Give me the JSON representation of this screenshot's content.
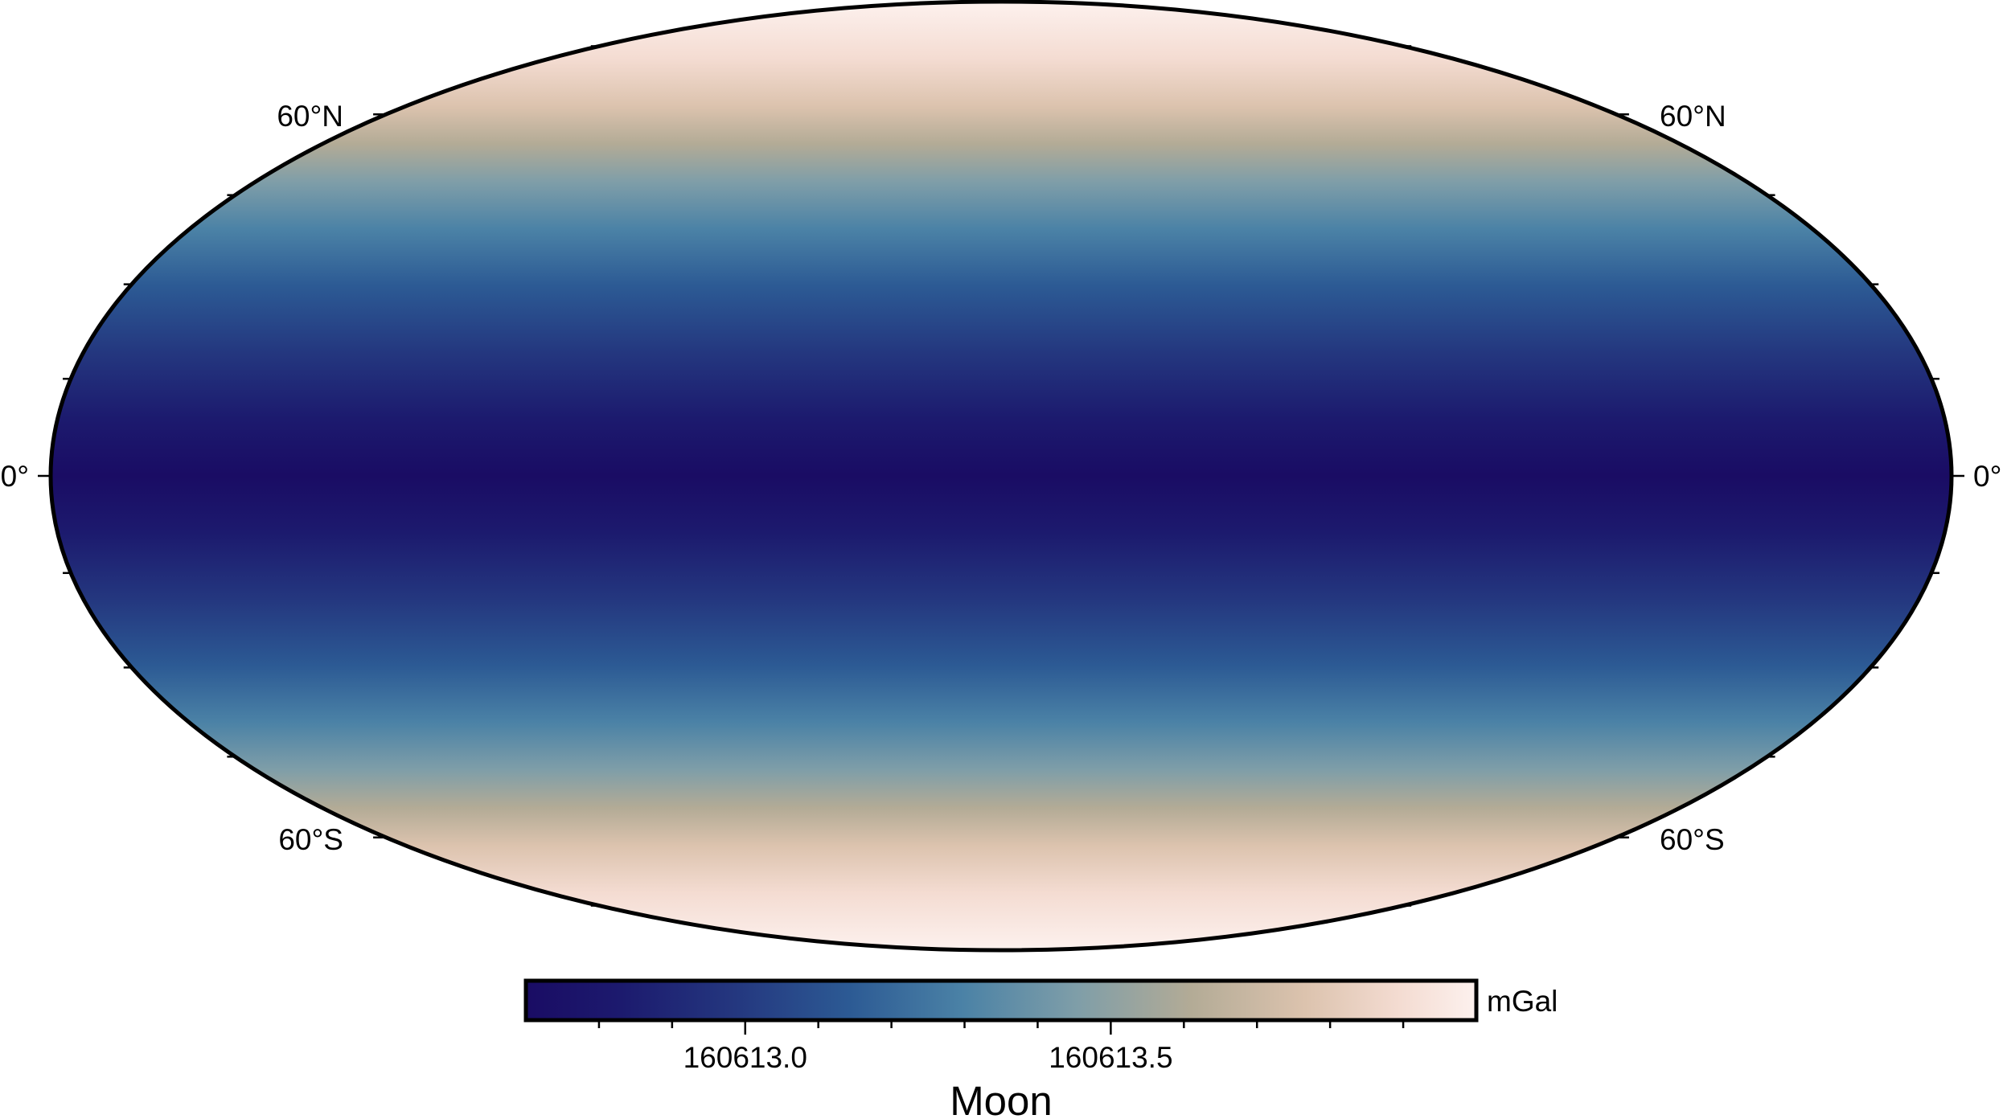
{
  "map": {
    "projection": "Mollweide (global)",
    "field_quantity": "gravity",
    "field_pattern": "zonal — minimum at equator, increasing toward both poles",
    "frame_color": "#000000",
    "latitude_labels": {
      "north_60_left": "60°N",
      "north_60_right": "60°N",
      "equator_left": "0°",
      "equator_right": "0°",
      "south_60_left": "60°S",
      "south_60_right": "60°S"
    }
  },
  "colorbar": {
    "colormap": "lajolla/devon-like",
    "colors": [
      "#1a0c64",
      "#1c1a6e",
      "#24377f",
      "#2c5a94",
      "#4b82a6",
      "#7f9ea8",
      "#b3ab96",
      "#dcc3ae",
      "#f4dcd2",
      "#fdf1ee"
    ],
    "range": [
      160612.7,
      160614.0
    ],
    "tick_labels": [
      "160613.0",
      "160613.5"
    ],
    "tick_values": [
      160613.0,
      160613.5
    ],
    "minor_tick_step": 0.1,
    "unit": "mGal",
    "title": "Moon"
  }
}
